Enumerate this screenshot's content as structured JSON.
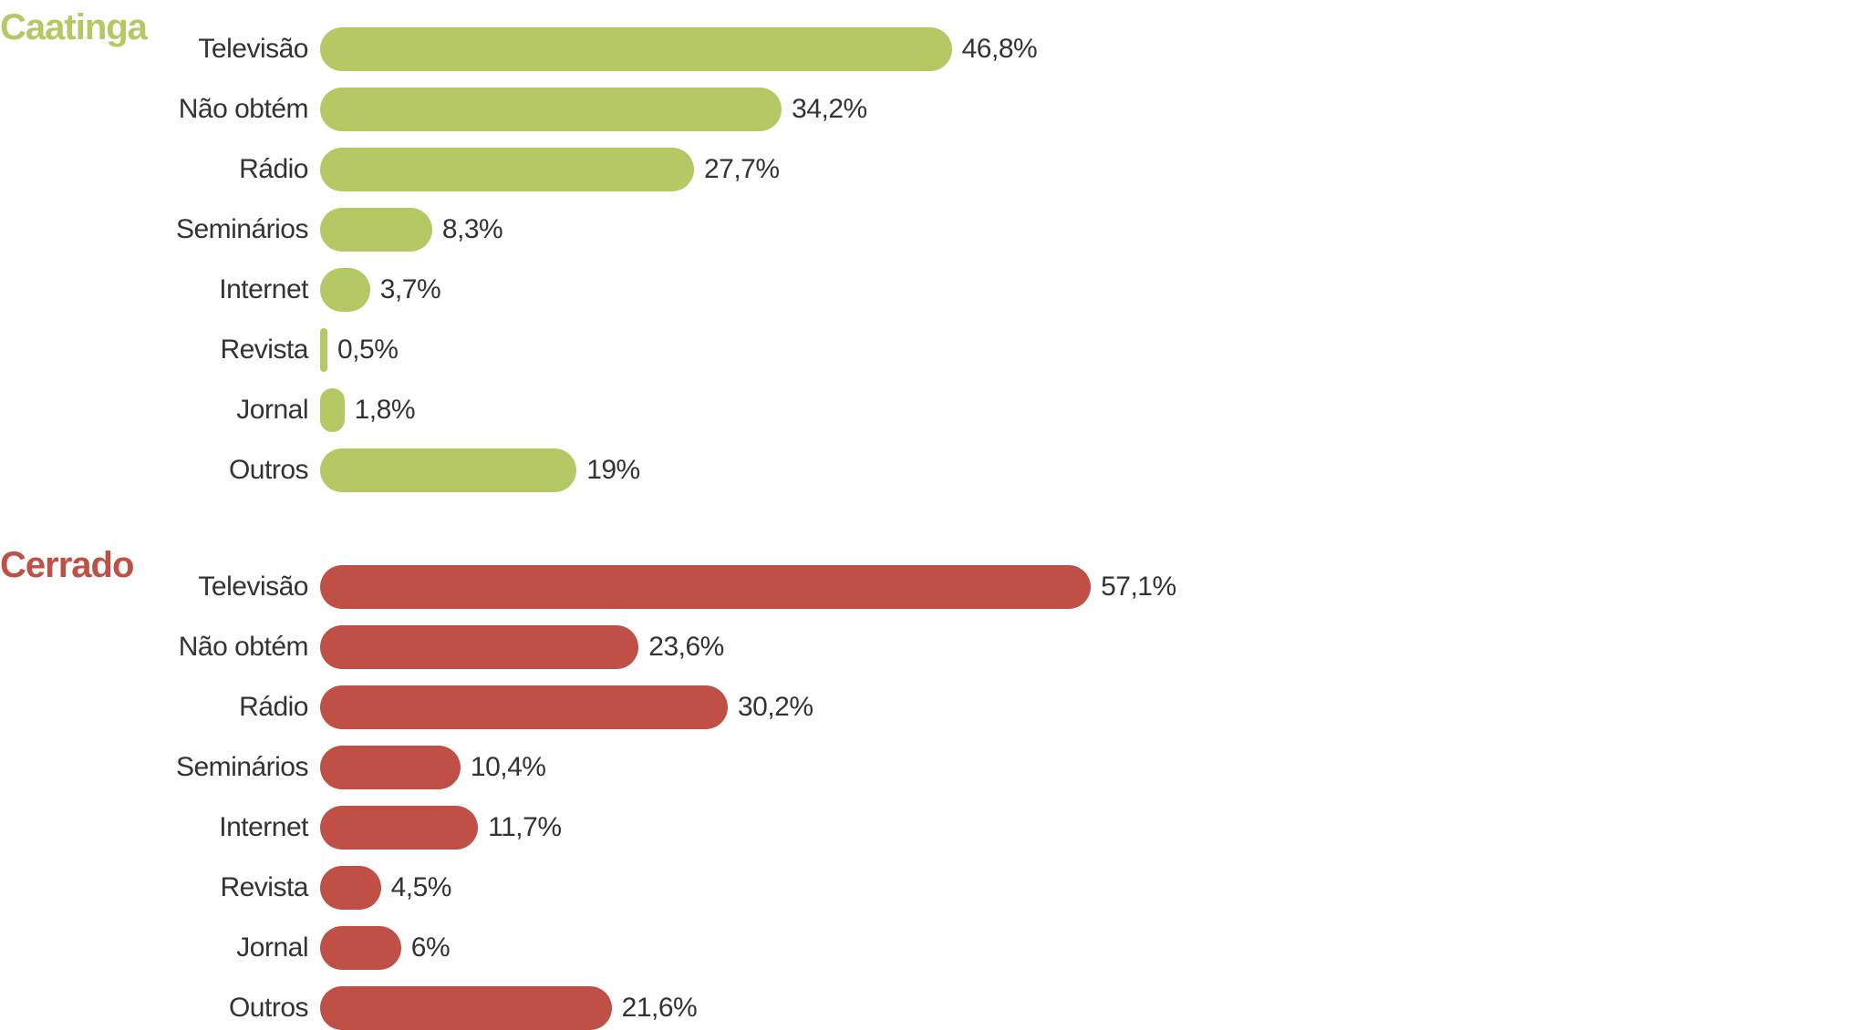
{
  "chart_data": [
    {
      "type": "bar",
      "orientation": "horizontal",
      "title": "Caatinga",
      "color": "#b4c864",
      "categories": [
        "Televisão",
        "Não obtém",
        "Rádio",
        "Seminários",
        "Internet",
        "Revista",
        "Jornal",
        "Outros"
      ],
      "values": [
        46.8,
        34.2,
        27.7,
        8.3,
        3.7,
        0.5,
        1.8,
        19
      ],
      "value_labels": [
        "46,8%",
        "34,2%",
        "27,7%",
        "8,3%",
        "3,7%",
        "0,5%",
        "1,8%",
        "19%"
      ]
    },
    {
      "type": "bar",
      "orientation": "horizontal",
      "title": "Cerrado",
      "color": "#c04f45",
      "categories": [
        "Televisão",
        "Não obtém",
        "Rádio",
        "Seminários",
        "Internet",
        "Revista",
        "Jornal",
        "Outros"
      ],
      "values": [
        57.1,
        23.6,
        30.2,
        10.4,
        11.7,
        4.5,
        6,
        21.6
      ],
      "value_labels": [
        "57,1%",
        "23,6%",
        "30,2%",
        "10,4%",
        "11,7%",
        "4,5%",
        "6%",
        "21,6%"
      ]
    }
  ]
}
